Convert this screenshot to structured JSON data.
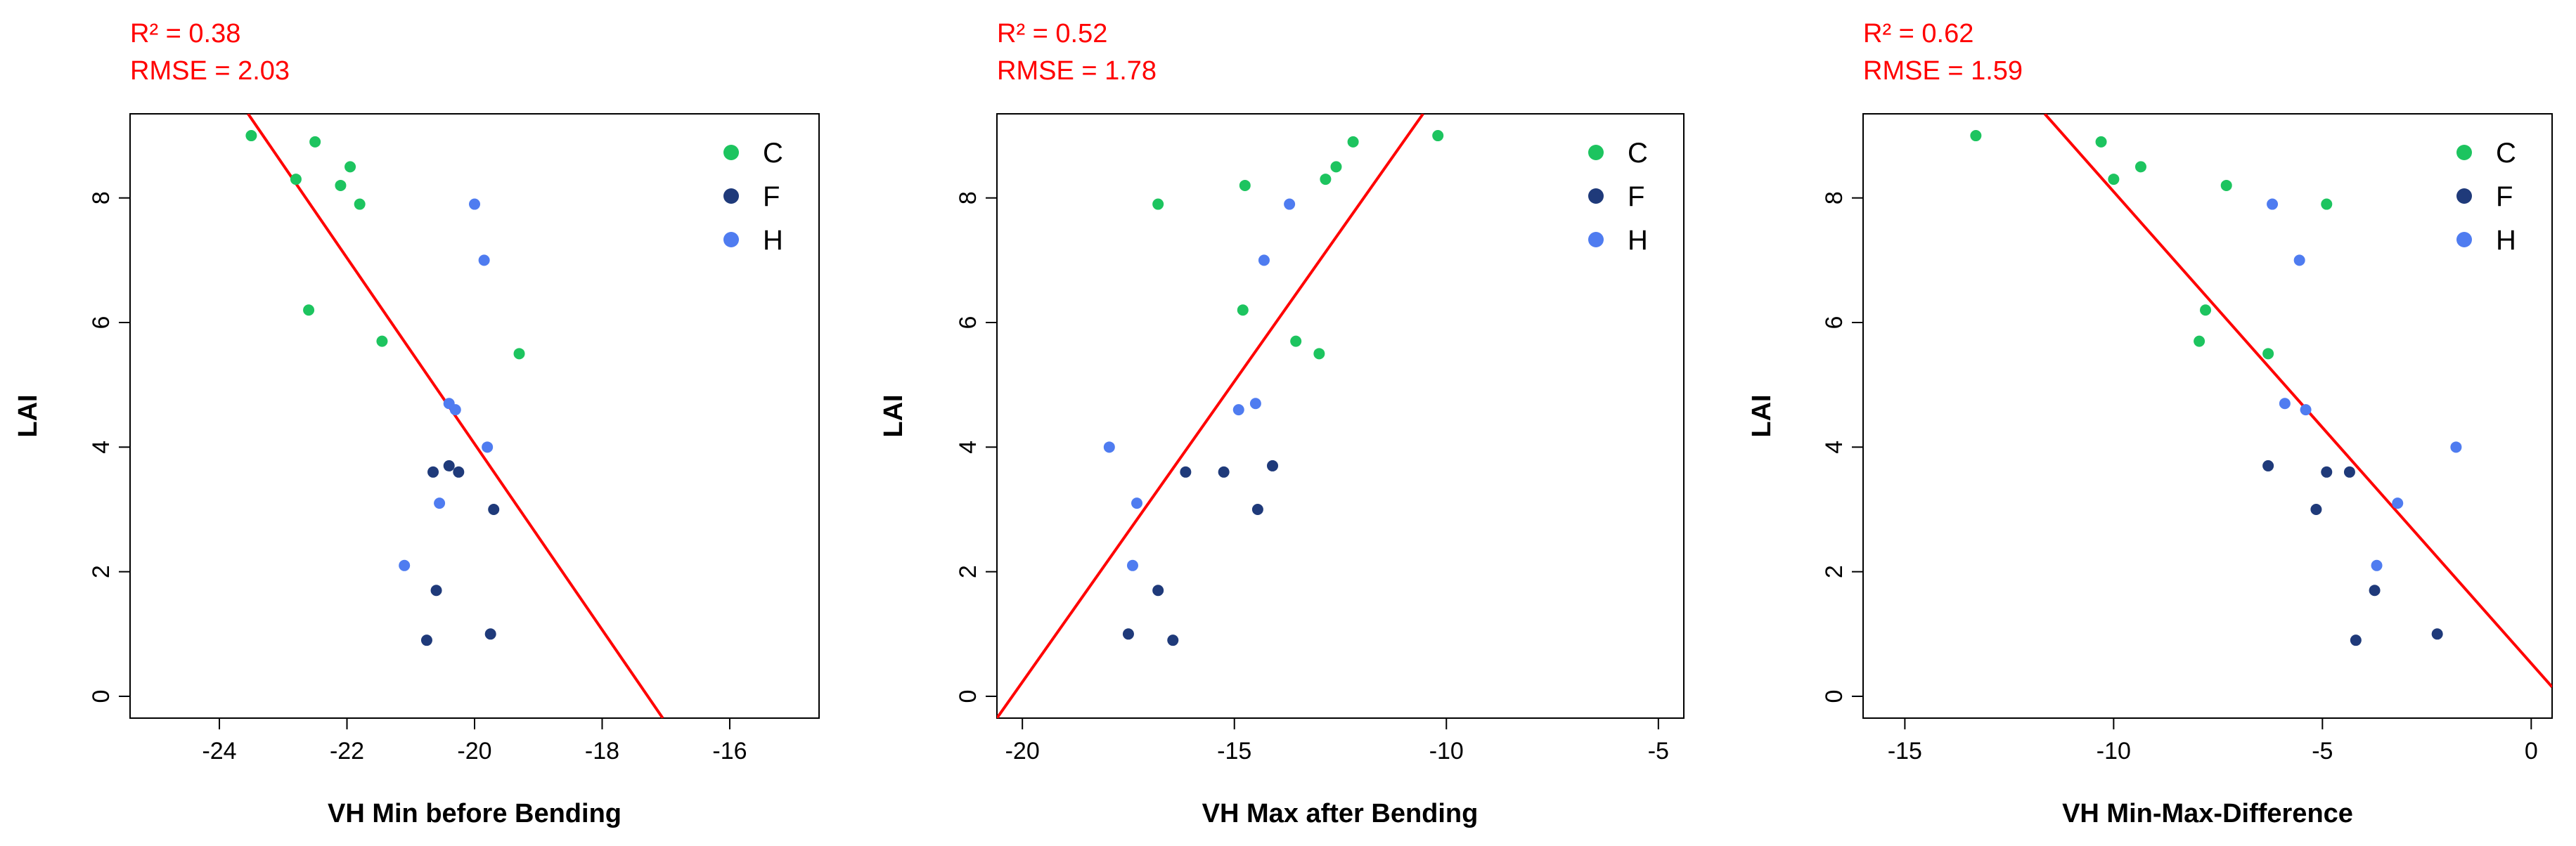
{
  "colors": {
    "C": "#1dc45f",
    "F": "#1f3a7a",
    "H": "#4f7cf0",
    "fit_line": "#ff0000",
    "stats": "#ff0000"
  },
  "chart_data": [
    {
      "type": "scatter",
      "xlabel": "VH Min before Bending",
      "ylabel": "LAI",
      "stats": {
        "r2": "R² = 0.38",
        "rmse": "RMSE = 2.03"
      },
      "xlim": [
        -25.4,
        -14.6
      ],
      "ylim": [
        -0.35,
        9.35
      ],
      "xticks": [
        -24,
        -22,
        -20,
        -18,
        -16
      ],
      "xtick_labels": [
        "-24",
        "-22",
        "-20",
        "-18",
        "-16"
      ],
      "yticks": [
        0,
        2,
        4,
        6,
        8
      ],
      "ytick_labels": [
        "0",
        "2",
        "4",
        "6",
        "8"
      ],
      "legend": [
        "C",
        "F",
        "H"
      ],
      "fit_line": [
        [
          -23.55,
          9.35
        ],
        [
          -17.05,
          -0.35
        ]
      ],
      "series": [
        {
          "name": "C",
          "points": [
            [
              -23.5,
              9.0
            ],
            [
              -22.5,
              8.9
            ],
            [
              -22.8,
              8.3
            ],
            [
              -21.95,
              8.5
            ],
            [
              -22.1,
              8.2
            ],
            [
              -21.8,
              7.9
            ],
            [
              -22.6,
              6.2
            ],
            [
              -21.45,
              5.7
            ],
            [
              -19.3,
              5.5
            ]
          ]
        },
        {
          "name": "F",
          "points": [
            [
              -20.4,
              3.7
            ],
            [
              -20.65,
              3.6
            ],
            [
              -20.25,
              3.6
            ],
            [
              -19.7,
              3.0
            ],
            [
              -20.6,
              1.7
            ],
            [
              -20.75,
              0.9
            ],
            [
              -19.75,
              1.0
            ]
          ]
        },
        {
          "name": "H",
          "points": [
            [
              -20.0,
              7.9
            ],
            [
              -19.85,
              7.0
            ],
            [
              -20.4,
              4.7
            ],
            [
              -20.3,
              4.6
            ],
            [
              -19.8,
              4.0
            ],
            [
              -20.55,
              3.1
            ],
            [
              -21.1,
              2.1
            ]
          ]
        }
      ]
    },
    {
      "type": "scatter",
      "xlabel": "VH Max after Bending",
      "ylabel": "LAI",
      "stats": {
        "r2": "R² = 0.52",
        "rmse": "RMSE = 1.78"
      },
      "xlim": [
        -20.6,
        -4.4
      ],
      "ylim": [
        -0.35,
        9.35
      ],
      "xticks": [
        -20,
        -15,
        -10,
        -5
      ],
      "xtick_labels": [
        "-20",
        "-15",
        "-10",
        "-5"
      ],
      "yticks": [
        0,
        2,
        4,
        6,
        8
      ],
      "ytick_labels": [
        "0",
        "2",
        "4",
        "6",
        "8"
      ],
      "legend": [
        "C",
        "F",
        "H"
      ],
      "fit_line": [
        [
          -20.6,
          -0.35
        ],
        [
          -10.55,
          9.35
        ]
      ],
      "series": [
        {
          "name": "C",
          "points": [
            [
              -10.2,
              9.0
            ],
            [
              -12.2,
              8.9
            ],
            [
              -12.6,
              8.5
            ],
            [
              -12.85,
              8.3
            ],
            [
              -14.75,
              8.2
            ],
            [
              -16.8,
              7.9
            ],
            [
              -14.8,
              6.2
            ],
            [
              -13.55,
              5.7
            ],
            [
              -13.0,
              5.5
            ]
          ]
        },
        {
          "name": "F",
          "points": [
            [
              -14.1,
              3.7
            ],
            [
              -16.15,
              3.6
            ],
            [
              -15.25,
              3.6
            ],
            [
              -14.45,
              3.0
            ],
            [
              -16.8,
              1.7
            ],
            [
              -17.5,
              1.0
            ],
            [
              -16.45,
              0.9
            ]
          ]
        },
        {
          "name": "H",
          "points": [
            [
              -13.7,
              7.9
            ],
            [
              -14.3,
              7.0
            ],
            [
              -14.5,
              4.7
            ],
            [
              -14.9,
              4.6
            ],
            [
              -17.95,
              4.0
            ],
            [
              -17.3,
              3.1
            ],
            [
              -17.4,
              2.1
            ]
          ]
        }
      ]
    },
    {
      "type": "scatter",
      "xlabel": "VH Min-Max-Difference",
      "ylabel": "LAI",
      "stats": {
        "r2": "R² = 0.62",
        "rmse": "RMSE = 1.59"
      },
      "xlim": [
        -16.0,
        0.5
      ],
      "ylim": [
        -0.35,
        9.35
      ],
      "xticks": [
        -15,
        -10,
        -5,
        0
      ],
      "xtick_labels": [
        "-15",
        "-10",
        "-5",
        "0"
      ],
      "yticks": [
        0,
        2,
        4,
        6,
        8
      ],
      "ytick_labels": [
        "0",
        "2",
        "4",
        "6",
        "8"
      ],
      "legend": [
        "C",
        "F",
        "H"
      ],
      "fit_line": [
        [
          -11.65,
          9.35
        ],
        [
          0.5,
          0.15
        ]
      ],
      "series": [
        {
          "name": "C",
          "points": [
            [
              -13.3,
              9.0
            ],
            [
              -10.3,
              8.9
            ],
            [
              -9.35,
              8.5
            ],
            [
              -10.0,
              8.3
            ],
            [
              -7.3,
              8.2
            ],
            [
              -4.9,
              7.9
            ],
            [
              -7.8,
              6.2
            ],
            [
              -7.95,
              5.7
            ],
            [
              -6.3,
              5.5
            ]
          ]
        },
        {
          "name": "F",
          "points": [
            [
              -6.3,
              3.7
            ],
            [
              -4.9,
              3.6
            ],
            [
              -4.35,
              3.6
            ],
            [
              -5.15,
              3.0
            ],
            [
              -3.75,
              1.7
            ],
            [
              -2.25,
              1.0
            ],
            [
              -4.2,
              0.9
            ]
          ]
        },
        {
          "name": "H",
          "points": [
            [
              -6.2,
              7.9
            ],
            [
              -5.55,
              7.0
            ],
            [
              -5.9,
              4.7
            ],
            [
              -5.4,
              4.6
            ],
            [
              -1.8,
              4.0
            ],
            [
              -3.2,
              3.1
            ],
            [
              -3.7,
              2.1
            ]
          ]
        }
      ]
    }
  ]
}
